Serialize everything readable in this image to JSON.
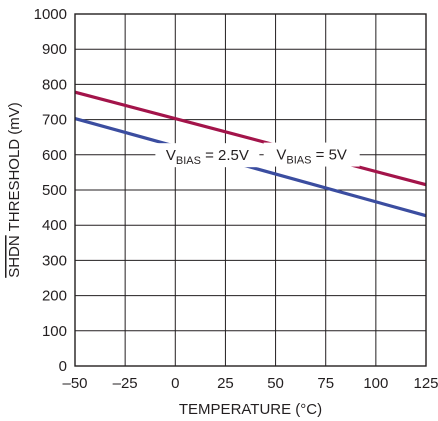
{
  "chart_data": {
    "type": "line",
    "xlabel": "TEMPERATURE (°C)",
    "ylabel": {
      "overbar": "SHDN",
      "rest": " THRESHOLD (mV)"
    },
    "xlim": [
      -50,
      125
    ],
    "ylim": [
      0,
      1000
    ],
    "x_ticks": [
      -50,
      -25,
      0,
      25,
      50,
      75,
      100,
      125
    ],
    "x_tick_labels": [
      "–50",
      "–25",
      "0",
      "25",
      "50",
      "75",
      "100",
      "125"
    ],
    "y_ticks": [
      0,
      100,
      200,
      300,
      400,
      500,
      600,
      700,
      800,
      900,
      1000
    ],
    "y_tick_labels": [
      "0",
      "100",
      "200",
      "300",
      "400",
      "500",
      "600",
      "700",
      "800",
      "900",
      "1000"
    ],
    "grid": true,
    "series": [
      {
        "name": "VBIAS = 5V",
        "label_main": "V",
        "label_sub": "BIAS",
        "label_rest": " = 5V",
        "color": "#a3144a",
        "x": [
          -50,
          125
        ],
        "y": [
          778,
          515
        ]
      },
      {
        "name": "VBIAS = 2.5V",
        "label_main": "V",
        "label_sub": "BIAS",
        "label_rest": " = 2.5V",
        "color": "#3b4da0",
        "x": [
          -50,
          125
        ],
        "y": [
          703,
          427
        ]
      }
    ]
  }
}
